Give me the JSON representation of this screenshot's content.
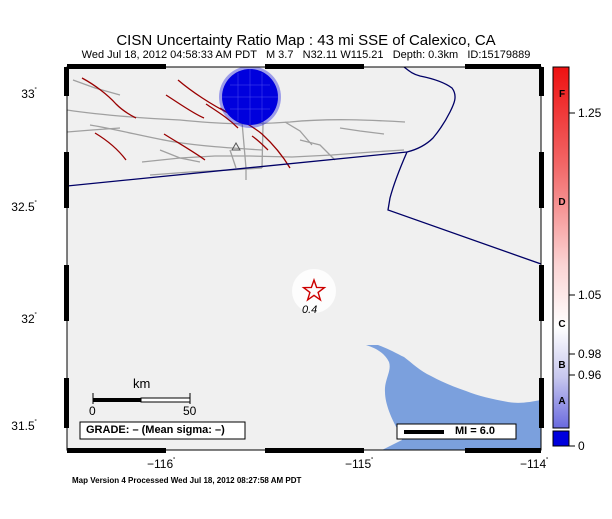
{
  "title": "CISN Uncertainty Ratio Map : 43 mi SSE of Calexico, CA",
  "subtitle": {
    "datetime": "Wed Jul 18, 2012 04:58:33 AM PDT",
    "magnitude": "M 3.7",
    "location": "N32.11 W115.21",
    "depth": "Depth: 0.3km",
    "id": "ID:15179889"
  },
  "lat_labels": [
    "33",
    "32.5",
    "32",
    "31.5"
  ],
  "lon_labels": [
    "−116",
    "−115",
    "−114"
  ],
  "degree_mark": "˚",
  "epicenter_value": "0.4",
  "scale_bar": {
    "unit": "km",
    "tick_start": "0",
    "tick_end": "50"
  },
  "grade_box": "GRADE: – (Mean sigma: –)",
  "mi_legend": "MI = 6.0",
  "colorbar": {
    "values": [
      "1.25",
      "1.05",
      "0.98",
      "0.96",
      "0"
    ],
    "grades": [
      "F",
      "D",
      "C",
      "B",
      "A"
    ]
  },
  "footer": "Map Version 4 Processed Wed Jul 18, 2012 08:27:58 AM PDT",
  "colors": {
    "land": "#f0f0f0",
    "water": "#7ba0dd",
    "border": "#000066",
    "fault": "#990000",
    "road": "#a0a0a0",
    "uncertainty_blob": "#0000dd",
    "epicenter": "#cc0000"
  }
}
